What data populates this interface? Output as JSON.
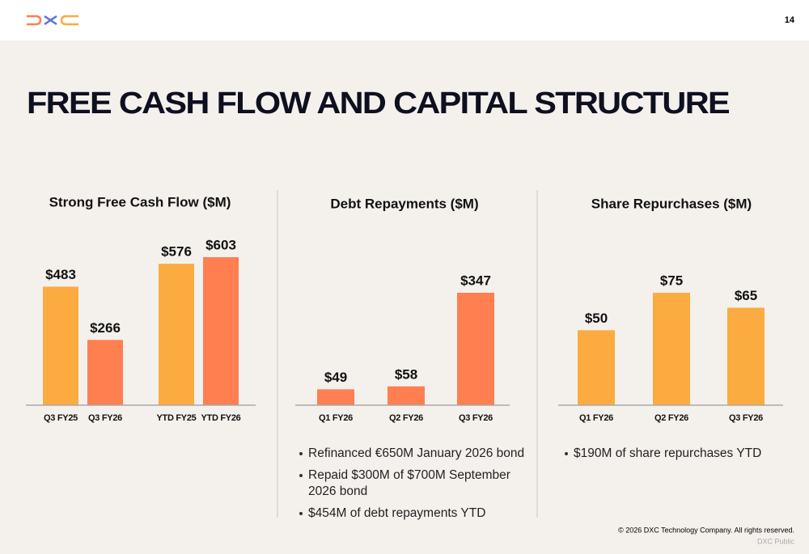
{
  "header": {
    "page_number": "14"
  },
  "title": "FREE CASH FLOW AND CAPITAL STRUCTURE",
  "chart_data": [
    {
      "type": "bar",
      "title": "Strong Free Cash Flow ($M)",
      "categories": [
        "Q3 FY25",
        "Q3 FY26",
        "YTD FY25",
        "YTD FY26"
      ],
      "values": [
        483,
        266,
        576,
        603
      ],
      "value_labels": [
        "$483",
        "$266",
        "$576",
        "$603"
      ],
      "colors": [
        "#fbab3f",
        "#ff7f50",
        "#fbab3f",
        "#ff7f50"
      ]
    },
    {
      "type": "bar",
      "title": "Debt Repayments ($M)",
      "categories": [
        "Q1 FY26",
        "Q2 FY26",
        "Q3 FY26"
      ],
      "values": [
        49,
        58,
        347
      ],
      "value_labels": [
        "$49",
        "$58",
        "$347"
      ],
      "colors": [
        "#ff7f50",
        "#ff7f50",
        "#ff7f50"
      ]
    },
    {
      "type": "bar",
      "title": "Share Repurchases ($M)",
      "categories": [
        "Q1 FY26",
        "Q2 FY26",
        "Q3 FY26"
      ],
      "values": [
        50,
        75,
        65
      ],
      "value_labels": [
        "$50",
        "$75",
        "$65"
      ],
      "colors": [
        "#fbab3f",
        "#fbab3f",
        "#fbab3f"
      ]
    }
  ],
  "bullets": [
    [
      [
        "Refinanced €650M January 2026 bond"
      ],
      [
        "Repaid $300M of $700M September",
        "2026 bond"
      ],
      [
        "$454M of debt repayments YTD"
      ]
    ],
    [
      [
        "$190M of share repurchases YTD"
      ]
    ]
  ],
  "footer": {
    "copyright": "© 2026 DXC Technology Company. All rights reserved.",
    "classification": "DXC Public"
  }
}
